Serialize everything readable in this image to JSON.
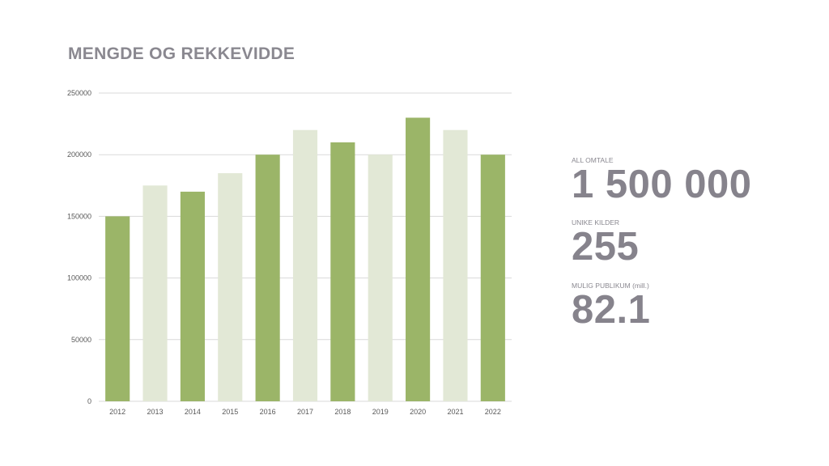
{
  "title": "MENGDE OG REKKEVIDDE",
  "stats": [
    {
      "label": "ALL OMTALE",
      "value": "1 500 000"
    },
    {
      "label": "UNIKE KILDER",
      "value": "255"
    },
    {
      "label": "MULIG PUBLIKUM (mill.)",
      "value": "82.1"
    }
  ],
  "colors": {
    "bar_dark": "#9bb568",
    "bar_light": "#e2e8d6",
    "grid": "#d9d9d9",
    "text_gray": "#86838c"
  },
  "chart_data": {
    "type": "bar",
    "categories": [
      "2012",
      "2013",
      "2014",
      "2015",
      "2016",
      "2017",
      "2018",
      "2019",
      "2020",
      "2021",
      "2022"
    ],
    "values": [
      150000,
      175000,
      170000,
      185000,
      200000,
      220000,
      210000,
      200000,
      230000,
      220000,
      200000
    ],
    "ylim": [
      0,
      250000
    ],
    "yticks": [
      0,
      50000,
      100000,
      150000,
      200000,
      250000
    ],
    "ytick_labels": [
      "0",
      "50000",
      "100000",
      "150000",
      "200000",
      "250000"
    ],
    "grid": true,
    "legend": "none",
    "title": "",
    "xlabel": "",
    "ylabel": ""
  }
}
